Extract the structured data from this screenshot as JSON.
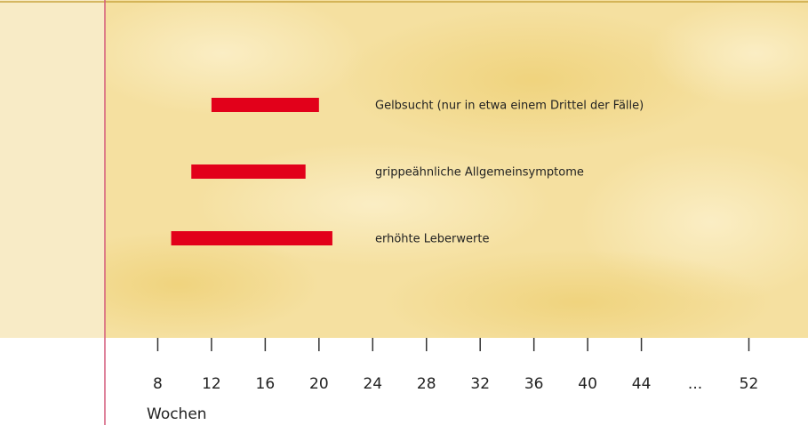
{
  "chart_data": {
    "type": "range-bar",
    "categories": [
      "Gelbsucht (nur in etwa einem Drittel der Fälle)",
      "grippeähnliche Allgemeinsymptome",
      "erhöhte Leberwerte"
    ],
    "start": [
      12,
      10.5,
      9
    ],
    "end": [
      20,
      19,
      21
    ],
    "color": "#e2001a",
    "xlabel": "Wochen",
    "xlim": [
      4,
      56.4
    ],
    "xticks": [
      8,
      12,
      16,
      20,
      24,
      28,
      32,
      36,
      40,
      44,
      {
        "value": 48,
        "label": "..."
      },
      52
    ]
  }
}
